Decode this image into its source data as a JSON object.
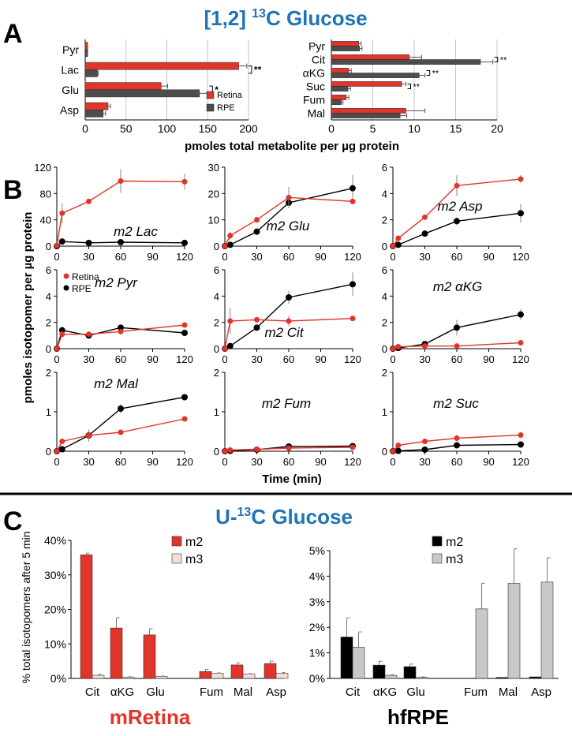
{
  "figure": {
    "panel_a_letter": "A",
    "panel_b_letter": "B",
    "panel_c_letter": "C",
    "title_a_prefix": "[1,2] ",
    "title_a_sup": "13",
    "title_a_suffix": "C Glucose",
    "title_c_prefix": "U-",
    "title_c_sup": "13",
    "title_c_suffix": "C Glucose",
    "panel_a_xlabel": "pmoles total metabolite per µg protein",
    "panel_b_ylabel": "pmoles isotopomer per µg protein",
    "panel_b_xlabel": "Time (min)",
    "panel_c_ylabel": "% total isotopomers after 5 min",
    "panel_c_left_caption": "mRetina",
    "panel_c_right_caption": "hfRPE"
  },
  "colors": {
    "retina": "#e0352a",
    "rpe_bar": "#4d4d4d",
    "rpe_line": "#000000",
    "m3_light": "#f6dcdc",
    "grey_bar": "#c8c8c8",
    "title_blue": "#1f74b4"
  },
  "chart_data": [
    {
      "id": "A1",
      "type": "bar",
      "orientation": "horizontal",
      "categories": [
        "Pyr",
        "Lac",
        "Glu",
        "Asp"
      ],
      "series": [
        {
          "name": "Retina",
          "values": [
            3,
            188,
            93,
            28
          ],
          "errors": [
            0,
            10,
            8,
            3
          ]
        },
        {
          "name": "RPE",
          "values": [
            3,
            15,
            140,
            22
          ],
          "errors": [
            0,
            1,
            10,
            3
          ]
        }
      ],
      "xlim": [
        0,
        200
      ],
      "xticks": [
        0,
        50,
        100,
        150,
        200
      ],
      "legend": [
        "Retina",
        "RPE"
      ],
      "significance": [
        {
          "category": "Lac",
          "label": "**"
        },
        {
          "category": "Glu",
          "label": "*"
        }
      ]
    },
    {
      "id": "A2",
      "type": "bar",
      "orientation": "horizontal",
      "categories": [
        "Pyr",
        "Cit",
        "αKG",
        "Suc",
        "Fum",
        "Mal"
      ],
      "series": [
        {
          "name": "Retina",
          "values": [
            3.3,
            9.4,
            2.1,
            8.5,
            1.8,
            9.0
          ],
          "errors": [
            0.3,
            1.5,
            0.3,
            0.5,
            0.3,
            2.3
          ]
        },
        {
          "name": "RPE",
          "values": [
            3.4,
            18.0,
            10.6,
            2.0,
            1.2,
            8.3
          ],
          "errors": [
            0.3,
            1.5,
            0.7,
            0.3,
            0.2,
            0.8
          ]
        }
      ],
      "xlim": [
        0,
        20
      ],
      "xticks": [
        0,
        5,
        10,
        15,
        20
      ],
      "significance": [
        {
          "category": "Cit",
          "label": "**"
        },
        {
          "category": "αKG",
          "label": "**"
        },
        {
          "category": "Suc",
          "label": "**"
        }
      ]
    },
    {
      "id": "B-Lac",
      "type": "line",
      "title": "m2 Lac",
      "x": [
        0,
        5,
        30,
        60,
        120
      ],
      "xticks": [
        0,
        30,
        60,
        90,
        120
      ],
      "ylim": [
        0,
        120
      ],
      "yticks": [
        0,
        40,
        80,
        120
      ],
      "series": [
        {
          "name": "Retina",
          "values": [
            1,
            50,
            68,
            99,
            98
          ],
          "errors": [
            0,
            15,
            3,
            18,
            12
          ]
        },
        {
          "name": "RPE",
          "values": [
            0,
            7,
            5,
            6,
            5
          ],
          "errors": [
            0,
            1,
            1,
            1,
            1
          ]
        }
      ]
    },
    {
      "id": "B-Glu",
      "type": "line",
      "title": "m2 Glu",
      "x": [
        0,
        5,
        30,
        60,
        120
      ],
      "xticks": [
        0,
        30,
        60,
        90,
        120
      ],
      "ylim": [
        0,
        30
      ],
      "yticks": [
        0,
        10,
        20,
        30
      ],
      "series": [
        {
          "name": "Retina",
          "values": [
            0,
            4,
            10,
            18.5,
            17
          ],
          "errors": [
            0,
            1.5,
            1,
            4,
            1
          ]
        },
        {
          "name": "RPE",
          "values": [
            0,
            0.5,
            5.5,
            16.5,
            22
          ],
          "errors": [
            0,
            0.3,
            0.5,
            2,
            5
          ]
        }
      ]
    },
    {
      "id": "B-Asp",
      "type": "line",
      "title": "m2 Asp",
      "x": [
        0,
        5,
        30,
        60,
        120
      ],
      "xticks": [
        0,
        30,
        60,
        90,
        120
      ],
      "ylim": [
        0,
        6
      ],
      "yticks": [
        0,
        2,
        4,
        6
      ],
      "series": [
        {
          "name": "Retina",
          "values": [
            0,
            0.6,
            2.2,
            4.6,
            5.1
          ],
          "errors": [
            0,
            0.15,
            0.2,
            0.8,
            0.3
          ]
        },
        {
          "name": "RPE",
          "values": [
            0,
            0.1,
            0.95,
            1.9,
            2.5
          ],
          "errors": [
            0,
            0.05,
            0.1,
            0.3,
            0.7
          ]
        }
      ]
    },
    {
      "id": "B-Pyr",
      "type": "line",
      "title": "m2 Pyr",
      "x": [
        0,
        5,
        30,
        60,
        120
      ],
      "xticks": [
        0,
        30,
        60,
        90,
        120
      ],
      "ylim": [
        0,
        6
      ],
      "yticks": [
        0,
        2,
        4,
        6
      ],
      "legend": [
        "Retina",
        "RPE"
      ],
      "series": [
        {
          "name": "Retina",
          "values": [
            0,
            1.1,
            1.1,
            1.3,
            1.8
          ],
          "errors": [
            0,
            0.1,
            0.1,
            0.1,
            0.1
          ]
        },
        {
          "name": "RPE",
          "values": [
            0,
            1.4,
            1.0,
            1.6,
            1.2
          ],
          "errors": [
            0,
            0.2,
            0.1,
            0.2,
            0.1
          ]
        }
      ]
    },
    {
      "id": "B-Cit",
      "type": "line",
      "title": "m2 Cit",
      "x": [
        0,
        5,
        30,
        60,
        120
      ],
      "xticks": [
        0,
        30,
        60,
        90,
        120
      ],
      "ylim": [
        0,
        6
      ],
      "yticks": [
        0,
        2,
        4,
        6
      ],
      "series": [
        {
          "name": "Retina",
          "values": [
            0,
            2.1,
            2.2,
            2.1,
            2.3
          ],
          "errors": [
            0,
            1.0,
            0.1,
            0.4,
            0.1
          ]
        },
        {
          "name": "RPE",
          "values": [
            0,
            0.2,
            1.6,
            3.9,
            4.9
          ],
          "errors": [
            0,
            0.05,
            0.15,
            0.5,
            0.9
          ]
        }
      ]
    },
    {
      "id": "B-aKG",
      "type": "line",
      "title": "m2 αKG",
      "x": [
        0,
        5,
        30,
        60,
        120
      ],
      "xticks": [
        0,
        30,
        60,
        90,
        120
      ],
      "ylim": [
        0,
        6
      ],
      "yticks": [
        0,
        2,
        4,
        6
      ],
      "series": [
        {
          "name": "Retina",
          "values": [
            0,
            0.15,
            0.2,
            0.2,
            0.45
          ],
          "errors": [
            0,
            0.1,
            0.05,
            0.05,
            0.05
          ]
        },
        {
          "name": "RPE",
          "values": [
            0,
            0.05,
            0.35,
            1.6,
            2.6
          ],
          "errors": [
            0,
            0.02,
            0.05,
            0.6,
            0.4
          ]
        }
      ]
    },
    {
      "id": "B-Mal",
      "type": "line",
      "title": "m2 Mal",
      "x": [
        0,
        5,
        30,
        60,
        120
      ],
      "xticks": [
        0,
        30,
        60,
        90,
        120
      ],
      "ylim": [
        0,
        2
      ],
      "yticks": [
        0,
        1,
        2
      ],
      "series": [
        {
          "name": "Retina",
          "values": [
            0,
            0.25,
            0.4,
            0.48,
            0.82
          ],
          "errors": [
            0,
            0.05,
            0.15,
            0.05,
            0.05
          ]
        },
        {
          "name": "RPE",
          "values": [
            0,
            0.05,
            0.4,
            1.08,
            1.37
          ],
          "errors": [
            0,
            0.02,
            0.1,
            0.12,
            0.05
          ]
        }
      ]
    },
    {
      "id": "B-Fum",
      "type": "line",
      "title": "m2 Fum",
      "x": [
        0,
        5,
        30,
        60,
        120
      ],
      "xticks": [
        0,
        30,
        60,
        90,
        120
      ],
      "ylim": [
        0,
        2
      ],
      "yticks": [
        0,
        1,
        2
      ],
      "series": [
        {
          "name": "Retina",
          "values": [
            0,
            0.03,
            0.05,
            0.08,
            0.1
          ],
          "errors": [
            0,
            0.01,
            0.01,
            0.01,
            0.01
          ]
        },
        {
          "name": "RPE",
          "values": [
            0,
            0.01,
            0.04,
            0.12,
            0.13
          ],
          "errors": [
            0,
            0.01,
            0.01,
            0.02,
            0.02
          ]
        }
      ]
    },
    {
      "id": "B-Suc",
      "type": "line",
      "title": "m2 Suc",
      "x": [
        0,
        5,
        30,
        60,
        120
      ],
      "xticks": [
        0,
        30,
        60,
        90,
        120
      ],
      "ylim": [
        0,
        2
      ],
      "yticks": [
        0,
        1,
        2
      ],
      "series": [
        {
          "name": "Retina",
          "values": [
            0,
            0.15,
            0.25,
            0.33,
            0.41
          ],
          "errors": [
            0,
            0.05,
            0.05,
            0.08,
            0.08
          ]
        },
        {
          "name": "RPE",
          "values": [
            0,
            0.01,
            0.04,
            0.15,
            0.17
          ],
          "errors": [
            0,
            0.01,
            0.01,
            0.02,
            0.02
          ]
        }
      ]
    },
    {
      "id": "C-mRetina",
      "type": "bar",
      "title": "mRetina",
      "categories": [
        "Cit",
        "αKG",
        "Glu",
        "Fum",
        "Mal",
        "Asp"
      ],
      "group_gap_after": 2,
      "ylim": [
        0,
        40
      ],
      "yticks": [
        0,
        10,
        20,
        30,
        40
      ],
      "tick_format": "percent_int",
      "legend": [
        "m2",
        "m3"
      ],
      "series": [
        {
          "name": "m2",
          "values": [
            35.8,
            14.6,
            12.6,
            2.0,
            3.9,
            4.3
          ],
          "errors": [
            0.5,
            3.0,
            1.8,
            0.6,
            0.6,
            0.7
          ]
        },
        {
          "name": "m3",
          "values": [
            0.9,
            0.4,
            0.6,
            1.5,
            1.3,
            1.5
          ],
          "errors": [
            0.3,
            0.1,
            0.1,
            0.1,
            0.1,
            0.2
          ]
        }
      ]
    },
    {
      "id": "C-hfRPE",
      "type": "bar",
      "title": "hfRPE",
      "categories": [
        "Cit",
        "αKG",
        "Glu",
        "Fum",
        "Mal",
        "Asp"
      ],
      "group_gap_after": 2,
      "ylim": [
        0,
        5
      ],
      "yticks": [
        0,
        1,
        2,
        3,
        4,
        5
      ],
      "tick_format": "percent_int",
      "legend": [
        "m2",
        "m3"
      ],
      "series": [
        {
          "name": "m2",
          "values": [
            1.62,
            0.52,
            0.46,
            0,
            0.04,
            0.06
          ],
          "errors": [
            0.75,
            0.15,
            0.1,
            0,
            0,
            0
          ]
        },
        {
          "name": "m3",
          "values": [
            1.22,
            0.12,
            0.04,
            2.72,
            3.72,
            3.77
          ],
          "errors": [
            0.6,
            0.03,
            0.02,
            1.0,
            1.35,
            0.95
          ]
        }
      ]
    }
  ]
}
